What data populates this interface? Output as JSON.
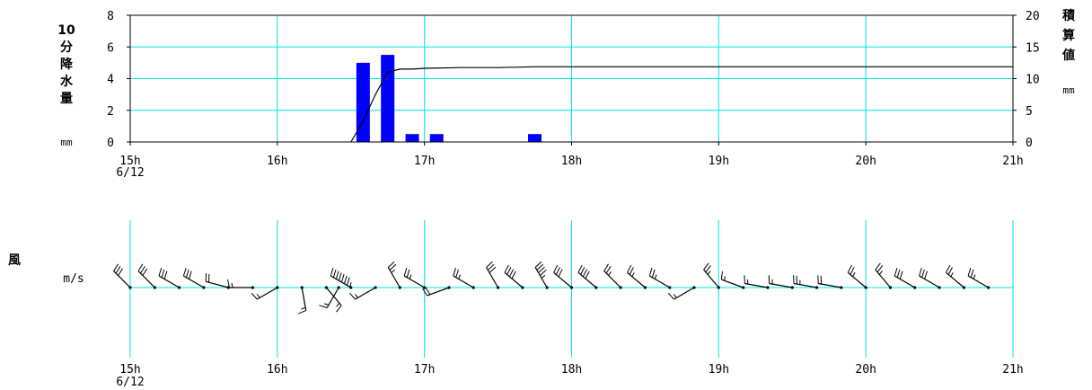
{
  "chart_data": [
    {
      "type": "bar",
      "left_axis": {
        "label_chars": [
          "10",
          "分",
          "降",
          "水",
          "量"
        ],
        "unit": "mm",
        "ticks": [
          0,
          2,
          4,
          6,
          8
        ],
        "ylim": [
          0,
          8
        ]
      },
      "right_axis": {
        "label_chars": [
          "積",
          "算",
          "値"
        ],
        "unit": "mm",
        "ticks": [
          0,
          5,
          10,
          15,
          20
        ],
        "ylim": [
          0,
          20
        ]
      },
      "x_axis": {
        "ticks": [
          "15h",
          "16h",
          "17h",
          "18h",
          "19h",
          "20h",
          "21h"
        ],
        "date_label": "6/12",
        "xlim": [
          15,
          21
        ]
      },
      "grid": true,
      "bar_color": "#0000ff",
      "grid_color": "#00e5e5",
      "series": [
        {
          "type": "bar",
          "x": [
            16.583,
            16.75,
            16.917,
            17.083,
            17.75
          ],
          "values": [
            5.0,
            5.5,
            0.5,
            0.5,
            0.5
          ]
        },
        {
          "type": "line",
          "x": [
            16.5,
            16.583,
            16.667,
            16.75,
            16.833,
            16.917,
            17.0,
            17.25,
            17.5,
            17.75,
            17.833,
            18.0,
            21.0
          ],
          "values": [
            0,
            1.3,
            3.0,
            4.4,
            4.6,
            4.6,
            4.65,
            4.7,
            4.7,
            4.75,
            4.75,
            4.75,
            4.75
          ]
        }
      ]
    },
    {
      "type": "wind_barbs",
      "side_label": "風",
      "unit": "m/s",
      "x_axis": {
        "ticks": [
          "15h",
          "16h",
          "17h",
          "18h",
          "19h",
          "20h",
          "21h"
        ],
        "date_label": "6/12",
        "xlim": [
          15,
          21
        ]
      },
      "observations": [
        {
          "t": 15.0,
          "dir": 315,
          "speed": 6
        },
        {
          "t": 15.167,
          "dir": 315,
          "speed": 6
        },
        {
          "t": 15.333,
          "dir": 300,
          "speed": 6
        },
        {
          "t": 15.5,
          "dir": 300,
          "speed": 6
        },
        {
          "t": 15.667,
          "dir": 285,
          "speed": 4
        },
        {
          "t": 15.833,
          "dir": 270,
          "speed": 3
        },
        {
          "t": 16.0,
          "dir": 240,
          "speed": 3
        },
        {
          "t": 16.167,
          "dir": 170,
          "speed": 3
        },
        {
          "t": 16.333,
          "dir": 140,
          "speed": 3
        },
        {
          "t": 16.417,
          "dir": 210,
          "speed": 3
        },
        {
          "t": 16.5,
          "dir": 300,
          "speed": 15
        },
        {
          "t": 16.667,
          "dir": 240,
          "speed": 3
        },
        {
          "t": 16.833,
          "dir": 330,
          "speed": 5
        },
        {
          "t": 17.0,
          "dir": 300,
          "speed": 5
        },
        {
          "t": 17.167,
          "dir": 250,
          "speed": 4
        },
        {
          "t": 17.333,
          "dir": 300,
          "speed": 5
        },
        {
          "t": 17.5,
          "dir": 330,
          "speed": 6
        },
        {
          "t": 17.667,
          "dir": 310,
          "speed": 8
        },
        {
          "t": 17.833,
          "dir": 330,
          "speed": 9
        },
        {
          "t": 18.0,
          "dir": 310,
          "speed": 6
        },
        {
          "t": 18.167,
          "dir": 310,
          "speed": 8
        },
        {
          "t": 18.333,
          "dir": 315,
          "speed": 5
        },
        {
          "t": 18.5,
          "dir": 310,
          "speed": 5
        },
        {
          "t": 18.667,
          "dir": 300,
          "speed": 5
        },
        {
          "t": 18.833,
          "dir": 240,
          "speed": 3
        },
        {
          "t": 19.0,
          "dir": 320,
          "speed": 5
        },
        {
          "t": 19.167,
          "dir": 290,
          "speed": 3
        },
        {
          "t": 19.333,
          "dir": 280,
          "speed": 3
        },
        {
          "t": 19.5,
          "dir": 280,
          "speed": 3
        },
        {
          "t": 19.667,
          "dir": 280,
          "speed": 5
        },
        {
          "t": 19.833,
          "dir": 280,
          "speed": 4
        },
        {
          "t": 20.0,
          "dir": 310,
          "speed": 5
        },
        {
          "t": 20.167,
          "dir": 320,
          "speed": 5
        },
        {
          "t": 20.333,
          "dir": 300,
          "speed": 6
        },
        {
          "t": 20.5,
          "dir": 300,
          "speed": 6
        },
        {
          "t": 20.667,
          "dir": 310,
          "speed": 5
        },
        {
          "t": 20.833,
          "dir": 300,
          "speed": 5
        }
      ]
    }
  ]
}
